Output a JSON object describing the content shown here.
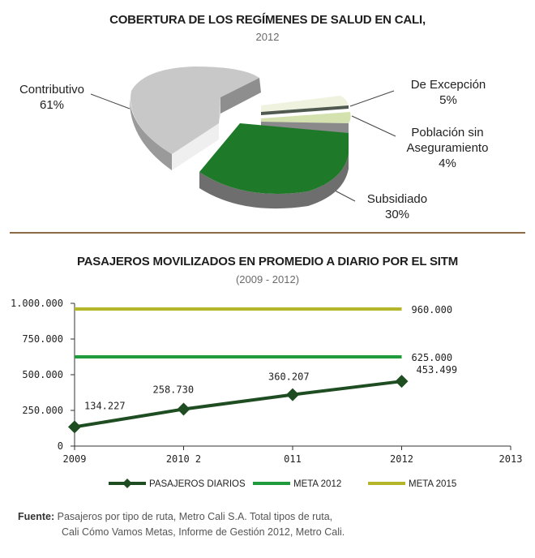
{
  "chart_data": [
    {
      "type": "pie",
      "title": "COBERTURA DE LOS REGÍMENES DE SALUD EN CALI,",
      "subtitle": "2012",
      "slices": [
        {
          "name": "Contributivo",
          "value": 61,
          "label": "61%",
          "color": "#c8c8c8"
        },
        {
          "name": "De Excepción",
          "value": 5,
          "label": "5%",
          "color": "#f0f2e0"
        },
        {
          "name": "Población sin Aseguramiento",
          "name_line1": "Población sin",
          "name_line2": "Aseguramiento",
          "value": 4,
          "label": "4%",
          "color": "#d4e2b0"
        },
        {
          "name": "Subsidiado",
          "value": 30,
          "label": "30%",
          "color": "#1e7a28"
        }
      ]
    },
    {
      "type": "line",
      "title": "PASAJEROS MOVILIZADOS EN PROMEDIO A DIARIO POR EL SITM",
      "subtitle": "(2009 - 2012)",
      "x_ticks": [
        "2009",
        "2010 2",
        "011",
        "2012",
        "2013"
      ],
      "y_ticks": [
        "0",
        "250.000",
        "500.000",
        "750.000",
        "1.000.000"
      ],
      "ylim": [
        0,
        1000000
      ],
      "series": [
        {
          "name": "PASAJEROS DIARIOS",
          "color": "#1f4d22",
          "x": [
            2009,
            2010,
            2011,
            2012
          ],
          "values": [
            134227,
            258730,
            360207,
            453499
          ],
          "labels": [
            "134.227",
            "258.730",
            "360.207",
            "453.499"
          ]
        },
        {
          "name": "META 2012",
          "color": "#1f9a3c",
          "x": [
            2009,
            2012
          ],
          "values": [
            625000,
            625000
          ],
          "labels": [
            "625.000"
          ]
        },
        {
          "name": "META 2015",
          "color": "#b5b52a",
          "x": [
            2009,
            2012
          ],
          "values": [
            960000,
            960000
          ],
          "labels": [
            "960.000"
          ]
        }
      ],
      "xlim": [
        2009,
        2013
      ]
    }
  ],
  "source": {
    "label": "Fuente:",
    "line1": "Pasajeros por tipo de ruta, Metro Cali S.A. Total tipos de ruta,",
    "line2": "Cali Cómo Vamos Metas, Informe de Gestión 2012, Metro Cali."
  }
}
